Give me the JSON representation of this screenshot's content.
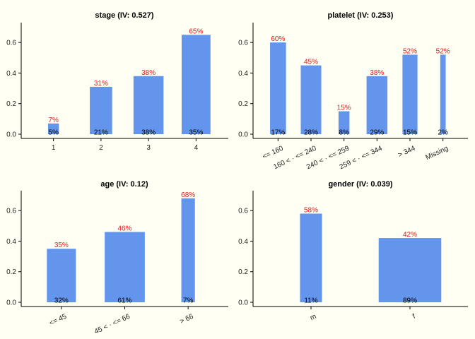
{
  "chart_data": [
    {
      "type": "bar",
      "title": "stage (IV: 0.527)",
      "categories": [
        "1",
        "2",
        "3",
        "4"
      ],
      "category_share": [
        0.05,
        0.21,
        0.38,
        0.35
      ],
      "category_share_labels": [
        "5%",
        "21%",
        "38%",
        "35%"
      ],
      "values": [
        0.07,
        0.31,
        0.38,
        0.65
      ],
      "value_labels": [
        "7%",
        "31%",
        "38%",
        "65%"
      ],
      "yticks": [
        "0.0",
        "0.2",
        "0.4",
        "0.6"
      ],
      "ylim": [
        0,
        0.73
      ],
      "xlabel_rotation": "none"
    },
    {
      "type": "bar",
      "title": "platelet (IV: 0.253)",
      "categories": [
        "<= 160",
        "160 < · <= 240",
        "240 < · <= 259",
        "259 < · <= 344",
        "> 344",
        "Missing"
      ],
      "category_share": [
        0.17,
        0.28,
        0.08,
        0.29,
        0.15,
        0.02
      ],
      "category_share_labels": [
        "17%",
        "28%",
        "8%",
        "29%",
        "15%",
        "2%"
      ],
      "values": [
        0.6,
        0.45,
        0.15,
        0.38,
        0.52,
        0.52
      ],
      "value_labels": [
        "60%",
        "45%",
        "15%",
        "38%",
        "52%",
        "52%"
      ],
      "yticks": [
        "0.0",
        "0.2",
        "0.4",
        "0.6"
      ],
      "ylim": [
        0,
        0.73
      ],
      "xlabel_rotation": "rotated"
    },
    {
      "type": "bar",
      "title": "age (IV: 0.12)",
      "categories": [
        "<= 45",
        "45 < · <= 66",
        "> 66"
      ],
      "category_share": [
        0.32,
        0.61,
        0.07
      ],
      "category_share_labels": [
        "32%",
        "61%",
        "7%"
      ],
      "values": [
        0.35,
        0.46,
        0.68
      ],
      "value_labels": [
        "35%",
        "46%",
        "68%"
      ],
      "yticks": [
        "0.0",
        "0.2",
        "0.4",
        "0.6"
      ],
      "ylim": [
        0,
        0.73
      ],
      "xlabel_rotation": "rotated"
    },
    {
      "type": "bar",
      "title": "gender (IV: 0.039)",
      "categories": [
        "m",
        "f"
      ],
      "category_share": [
        0.11,
        0.89
      ],
      "category_share_labels": [
        "11%",
        "89%"
      ],
      "values": [
        0.58,
        0.42
      ],
      "value_labels": [
        "58%",
        "42%"
      ],
      "yticks": [
        "0.0",
        "0.2",
        "0.4",
        "0.6"
      ],
      "ylim": [
        0,
        0.73
      ],
      "xlabel_rotation": "rotated"
    }
  ],
  "colors": {
    "background": "#FFFFF3",
    "bar": "#6495ED",
    "value_label": "#E41A1C",
    "share_label": "#000000"
  }
}
